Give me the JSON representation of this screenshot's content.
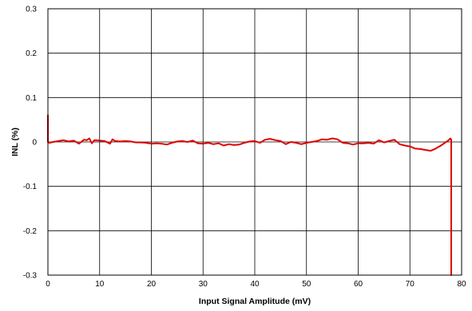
{
  "chart_data": {
    "type": "line",
    "title": "",
    "xlabel": "Input Signal Amplitude (mV)",
    "ylabel": "INL (%)",
    "xlim": [
      0,
      80
    ],
    "ylim": [
      -0.3,
      0.3
    ],
    "x_ticks": [
      0,
      10,
      20,
      30,
      40,
      50,
      60,
      70,
      80
    ],
    "x_tick_labels": [
      "0",
      "10",
      "20",
      "30",
      "40",
      "50",
      "60",
      "70",
      "80"
    ],
    "y_ticks": [
      0.3,
      0.2,
      0.1,
      0,
      -0.1,
      -0.2,
      -0.3
    ],
    "y_tick_labels": [
      "0.3",
      "0.2",
      "0.1",
      "0",
      "-0.1",
      "-0.2",
      "-0.3"
    ],
    "grid": true,
    "legend": "none",
    "line_color": "#e00000",
    "series": [
      {
        "x": [
          0,
          0,
          0.3,
          1,
          2,
          3,
          4,
          5,
          6,
          7,
          7.5,
          8,
          8.5,
          9,
          10,
          11,
          12,
          12.5,
          13,
          14,
          15,
          16,
          17,
          18,
          19,
          20,
          21,
          22,
          23,
          24,
          25,
          26,
          27,
          28,
          29,
          30,
          31,
          32,
          33,
          34,
          35,
          36,
          37,
          38,
          39,
          40,
          41,
          42,
          43,
          44,
          45,
          46,
          47,
          48,
          49,
          50,
          51,
          52,
          53,
          54,
          55,
          56,
          57,
          58,
          59,
          60,
          61,
          62,
          63,
          64,
          65,
          66,
          67,
          68,
          69,
          70,
          71,
          72,
          73,
          74,
          75,
          76,
          77,
          77.5,
          77.8,
          78,
          78,
          78
        ],
        "y": [
          0.06,
          0.0,
          -0.002,
          0.0,
          0.002,
          0.004,
          0.001,
          0.003,
          -0.004,
          0.005,
          0.004,
          0.008,
          -0.003,
          0.004,
          0.003,
          0.002,
          -0.004,
          0.006,
          0.002,
          0.001,
          0.002,
          0.001,
          -0.001,
          -0.001,
          -0.002,
          -0.004,
          -0.003,
          -0.004,
          -0.006,
          -0.002,
          0.001,
          0.002,
          0.0,
          0.003,
          -0.003,
          -0.004,
          -0.002,
          -0.005,
          -0.003,
          -0.008,
          -0.005,
          -0.007,
          -0.006,
          -0.002,
          0.001,
          0.002,
          -0.002,
          0.005,
          0.007,
          0.004,
          0.002,
          -0.005,
          0.0,
          -0.002,
          -0.005,
          -0.002,
          0.0,
          0.002,
          0.006,
          0.005,
          0.008,
          0.006,
          -0.002,
          -0.003,
          -0.006,
          -0.003,
          -0.003,
          -0.002,
          -0.004,
          0.004,
          -0.001,
          0.002,
          0.005,
          -0.005,
          -0.008,
          -0.01,
          -0.015,
          -0.016,
          -0.018,
          -0.02,
          -0.015,
          -0.008,
          0.0,
          0.004,
          0.008,
          0.005,
          -0.1,
          -0.3
        ]
      }
    ]
  }
}
